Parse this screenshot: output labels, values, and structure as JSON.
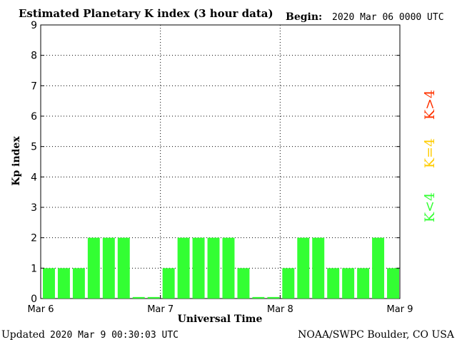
{
  "chart_data": {
    "type": "bar",
    "title": "Estimated Planetary K index (3 hour data)",
    "begin_label": "Begin:",
    "begin_value": "2020 Mar 06 0000 UTC",
    "ylabel": "Kp index",
    "xlabel": "Universal Time",
    "ylim": [
      0,
      9
    ],
    "yticks": [
      "0",
      "1",
      "2",
      "3",
      "4",
      "5",
      "6",
      "7",
      "8",
      "9"
    ],
    "xticks": [
      "Mar 6",
      "Mar 7",
      "Mar 8",
      "Mar 9"
    ],
    "grid": "dotted",
    "values": [
      1,
      1,
      1,
      2,
      2,
      2,
      0.05,
      0.05,
      1,
      2,
      2,
      2,
      2,
      1,
      0.05,
      0.05,
      1,
      2,
      2,
      1,
      1,
      1,
      2,
      1
    ],
    "bar_color": "#33ff33",
    "legend": [
      {
        "label": "K>4",
        "color": "#ff3300"
      },
      {
        "label": "K=4",
        "color": "#ffcc00"
      },
      {
        "label": "K<4",
        "color": "#33ff33"
      }
    ]
  },
  "footer": {
    "updated_label": "Updated",
    "updated_value": "2020 Mar  9 00:30:03 UTC",
    "source": "NOAA/SWPC Boulder, CO USA"
  }
}
